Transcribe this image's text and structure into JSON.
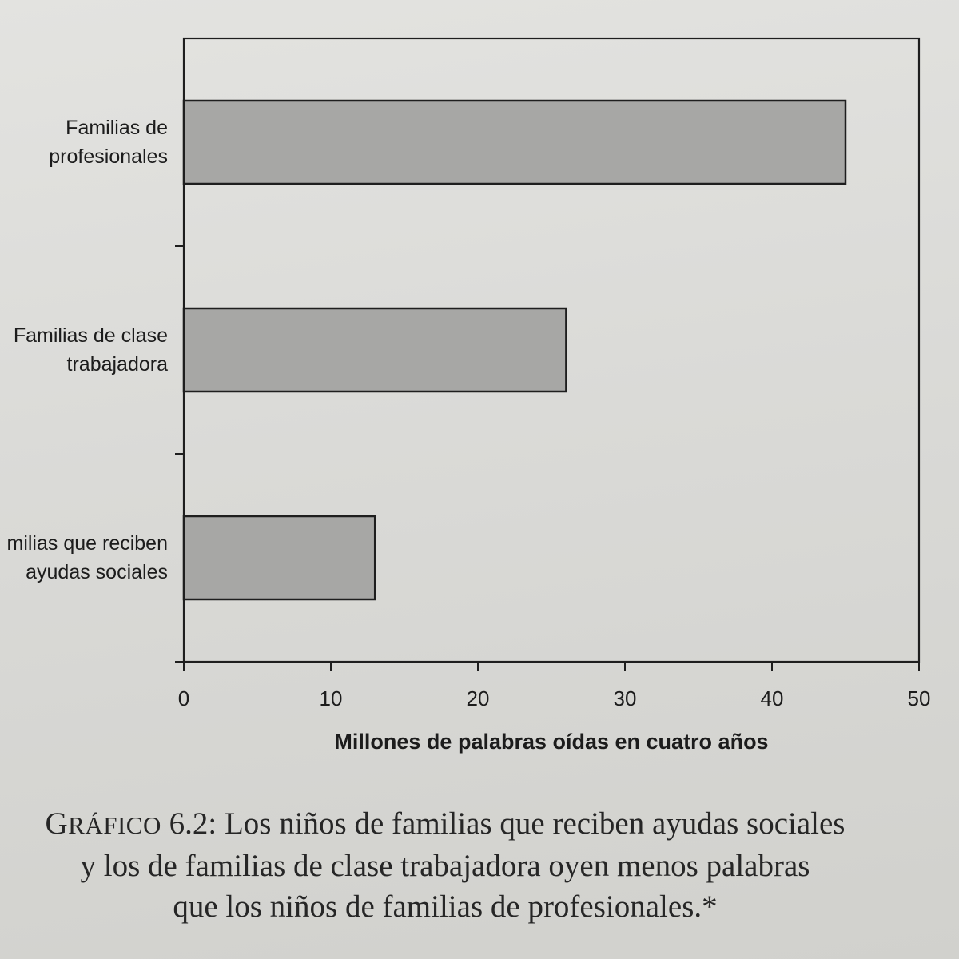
{
  "chart_data": {
    "type": "bar",
    "orientation": "horizontal",
    "categories": [
      "Familias de\nprofesionales",
      "Familias de clase\ntrabajadora",
      "milias que reciben\nayudas sociales"
    ],
    "values": [
      45,
      26,
      13
    ],
    "title": "",
    "xlabel": "Millones de palabras oídas en cuatro años",
    "ylabel": "",
    "xlim": [
      0,
      50
    ],
    "x_ticks": [
      0,
      10,
      20,
      30,
      40,
      50
    ],
    "x_tick_labels": [
      "0",
      "10",
      "20",
      "30",
      "40",
      "50"
    ],
    "grid": false,
    "legend": "none",
    "colors": {
      "bar_fill": "#a7a7a5",
      "bar_edge": "#1e1e1e",
      "axis": "#1e1e1e"
    }
  },
  "caption": {
    "label_word": "GRÁFICO",
    "label_number": "6.2:",
    "lines": [
      "Los niños de familias que reciben ayudas sociales",
      "y los de familias de clase trabajadora oyen menos palabras",
      "que los niños de familias de profesionales.*"
    ]
  },
  "page": {
    "paper_color": "#dadad7"
  }
}
